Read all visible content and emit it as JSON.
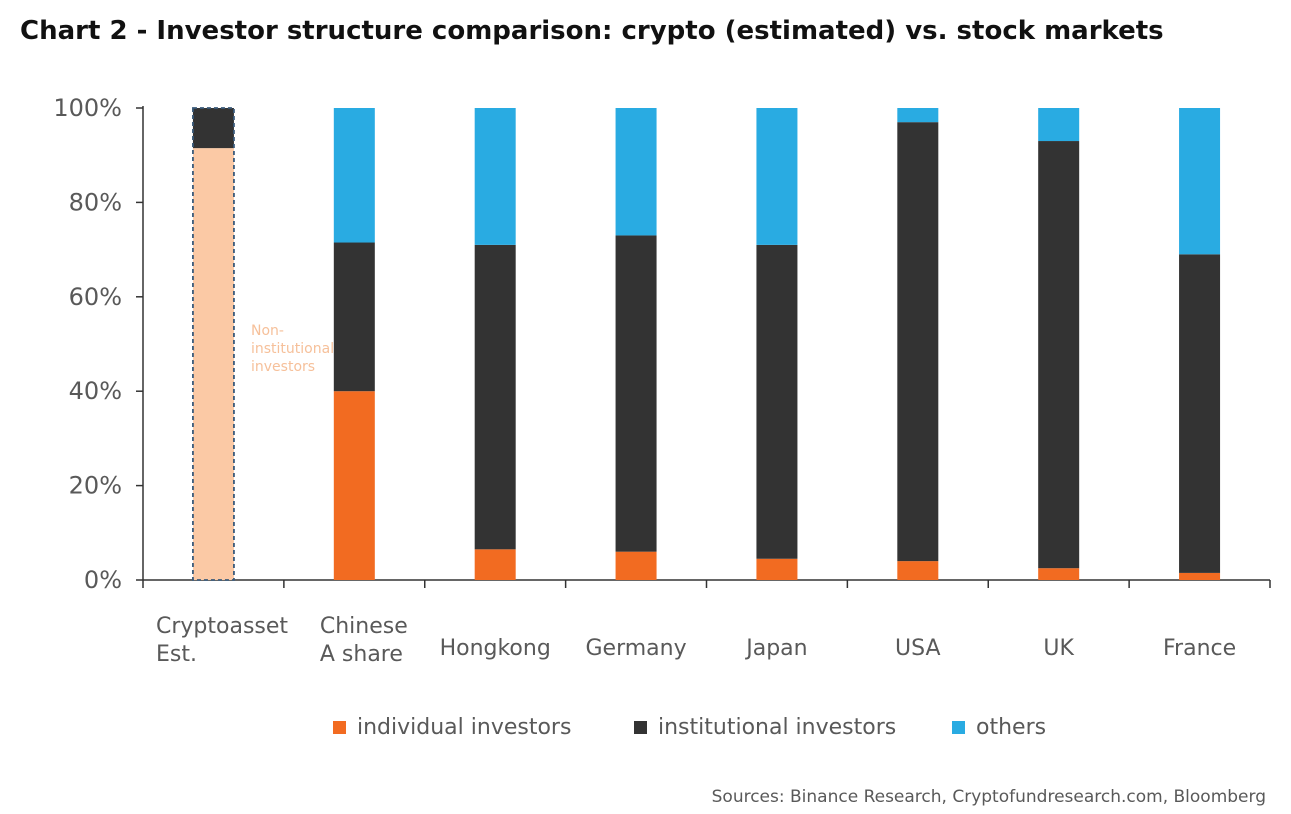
{
  "title": "Chart 2 - Investor structure comparison: crypto (estimated) vs. stock markets",
  "source": "Sources: Binance Research, Cryptofundresearch.com, Bloomberg",
  "colors": {
    "individual": "#f26b21",
    "institutional": "#333333",
    "others": "#29abe2",
    "non_institutional": "#fbc9a5",
    "crypto_border": "#3a5a7a",
    "axis": "#333333"
  },
  "chart_data": {
    "type": "bar",
    "stacked": true,
    "categories": [
      [
        "Cryptoasset",
        "Est."
      ],
      [
        "Chinese",
        "A share"
      ],
      [
        "Hongkong"
      ],
      [
        "Germany"
      ],
      [
        "Japan"
      ],
      [
        "USA"
      ],
      [
        "UK"
      ],
      [
        "France"
      ]
    ],
    "series": [
      {
        "name": "individual investors",
        "color_key": "individual",
        "values": [
          null,
          40,
          6.5,
          6,
          4.5,
          4,
          2.5,
          1.5
        ]
      },
      {
        "name": "institutional investors",
        "color_key": "institutional",
        "values": [
          8.5,
          31.5,
          64.5,
          67,
          66.5,
          93,
          90.5,
          67.5
        ]
      },
      {
        "name": "others",
        "color_key": "others",
        "values": [
          0,
          28.5,
          29,
          27,
          29,
          3,
          7,
          31
        ]
      }
    ],
    "crypto_non_institutional": {
      "category_index": 0,
      "value": 91.5
    },
    "annotation": {
      "lines": [
        "Non-",
        "institutional",
        "investors"
      ]
    },
    "ylim": [
      0,
      100
    ],
    "yticks": [
      "0%",
      "20%",
      "40%",
      "60%",
      "80%",
      "100%"
    ],
    "ytick_values": [
      0,
      20,
      40,
      60,
      80,
      100
    ],
    "xlabel": "",
    "ylabel": "",
    "grid": false,
    "legend": {
      "placement": "bottom",
      "items": [
        "individual investors",
        "institutional investors",
        "others"
      ]
    }
  }
}
